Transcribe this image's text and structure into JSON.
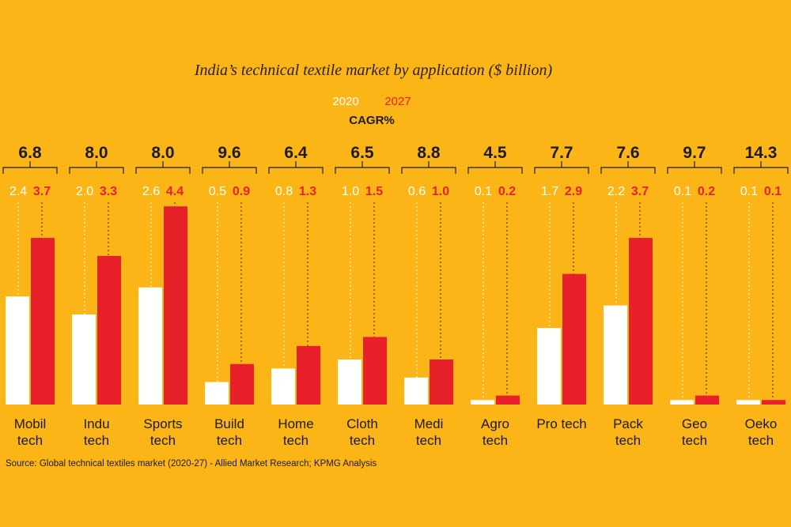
{
  "chart_data": {
    "type": "bar",
    "title": "India’s technical textile market by application ($ billion)",
    "legend": [
      {
        "name": "2020",
        "color": "#ffffff"
      },
      {
        "name": "2027",
        "color": "#e8202a"
      }
    ],
    "cagr_label": "CAGR%",
    "categories": [
      [
        "Mobil",
        "tech"
      ],
      [
        "Indu",
        "tech"
      ],
      [
        "Sports",
        "tech"
      ],
      [
        "Build",
        "tech"
      ],
      [
        "Home",
        "tech"
      ],
      [
        "Cloth",
        "tech"
      ],
      [
        "Medi",
        "tech"
      ],
      [
        "Agro",
        "tech"
      ],
      [
        "Pro tech"
      ],
      [
        "Pack",
        "tech"
      ],
      [
        "Geo",
        "tech"
      ],
      [
        "Oeko",
        "tech"
      ]
    ],
    "series": [
      {
        "name": "2020",
        "values": [
          "2.4",
          "2.0",
          "2.6",
          "0.5",
          "0.8",
          "1.0",
          "0.6",
          "0.1",
          "1.7",
          "2.2",
          "0.1",
          "0.1"
        ]
      },
      {
        "name": "2027",
        "values": [
          "3.7",
          "3.3",
          "4.4",
          "0.9",
          "1.3",
          "1.5",
          "1.0",
          "0.2",
          "2.9",
          "3.7",
          "0.2",
          "0.1"
        ]
      }
    ],
    "cagr": [
      "6.8",
      "8.0",
      "8.0",
      "9.6",
      "6.4",
      "6.5",
      "8.8",
      "4.5",
      "7.7",
      "7.6",
      "9.7",
      "14.3"
    ],
    "source": "Source: Global technical textiles market (2020-27) - Allied Market Research; KPMG Analysis",
    "grid": false,
    "legend_position": "top-center"
  }
}
